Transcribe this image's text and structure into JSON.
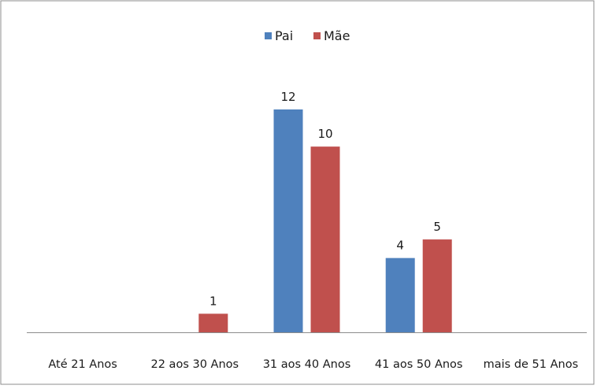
{
  "chart_data": {
    "type": "bar",
    "title": "",
    "xlabel": "",
    "ylabel": "",
    "categories": [
      "Até 21 Anos",
      "22 aos 30 Anos",
      "31 aos 40 Anos",
      "41 aos 50 Anos",
      "mais de 51 Anos"
    ],
    "series": [
      {
        "name": "Pai",
        "color": "#4f81bd",
        "values": [
          0,
          0,
          12,
          4,
          0
        ]
      },
      {
        "name": "Mãe",
        "color": "#c0504d",
        "values": [
          0,
          1,
          10,
          5,
          0
        ]
      }
    ],
    "ylim": [
      0,
      12
    ],
    "legend": "top-center",
    "grid": false,
    "data_labels": true
  }
}
